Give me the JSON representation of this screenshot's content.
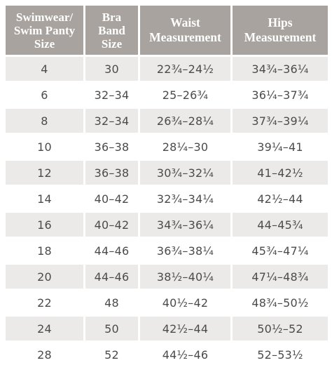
{
  "table": {
    "headers": [
      "Swimwear/\nSwim Panty\nSize",
      "Bra\nBand\nSize",
      "Waist\nMeasurement",
      "Hips\nMeasurement"
    ],
    "rows": [
      [
        "4",
        "30",
        "22¾–24½",
        "34¾–36¼"
      ],
      [
        "6",
        "32–34",
        "25–26¾",
        "36¼–37¾"
      ],
      [
        "8",
        "32–34",
        "26¾–28¼",
        "37¾–39¼"
      ],
      [
        "10",
        "36–38",
        "28¼–30",
        "39¼–41"
      ],
      [
        "12",
        "36–38",
        "30¾–32¼",
        "41–42½"
      ],
      [
        "14",
        "40–42",
        "32¾–34¼",
        "42½–44"
      ],
      [
        "16",
        "40–42",
        "34¾–36¼",
        "44–45¾"
      ],
      [
        "18",
        "44–46",
        "36¾–38¼",
        "45¾–47¼"
      ],
      [
        "20",
        "44–46",
        "38½–40¼",
        "47¼–48¾"
      ],
      [
        "22",
        "48",
        "40½–42",
        "48¾–50½"
      ],
      [
        "24",
        "50",
        "42½–44",
        "50½–52"
      ],
      [
        "28",
        "52",
        "44½–46",
        "52–53½"
      ]
    ]
  },
  "colors": {
    "header_bg": "#a8a39e",
    "header_text": "#ffffff",
    "stripe_bg": "#eceae8",
    "cell_text": "#4b4b4b"
  }
}
